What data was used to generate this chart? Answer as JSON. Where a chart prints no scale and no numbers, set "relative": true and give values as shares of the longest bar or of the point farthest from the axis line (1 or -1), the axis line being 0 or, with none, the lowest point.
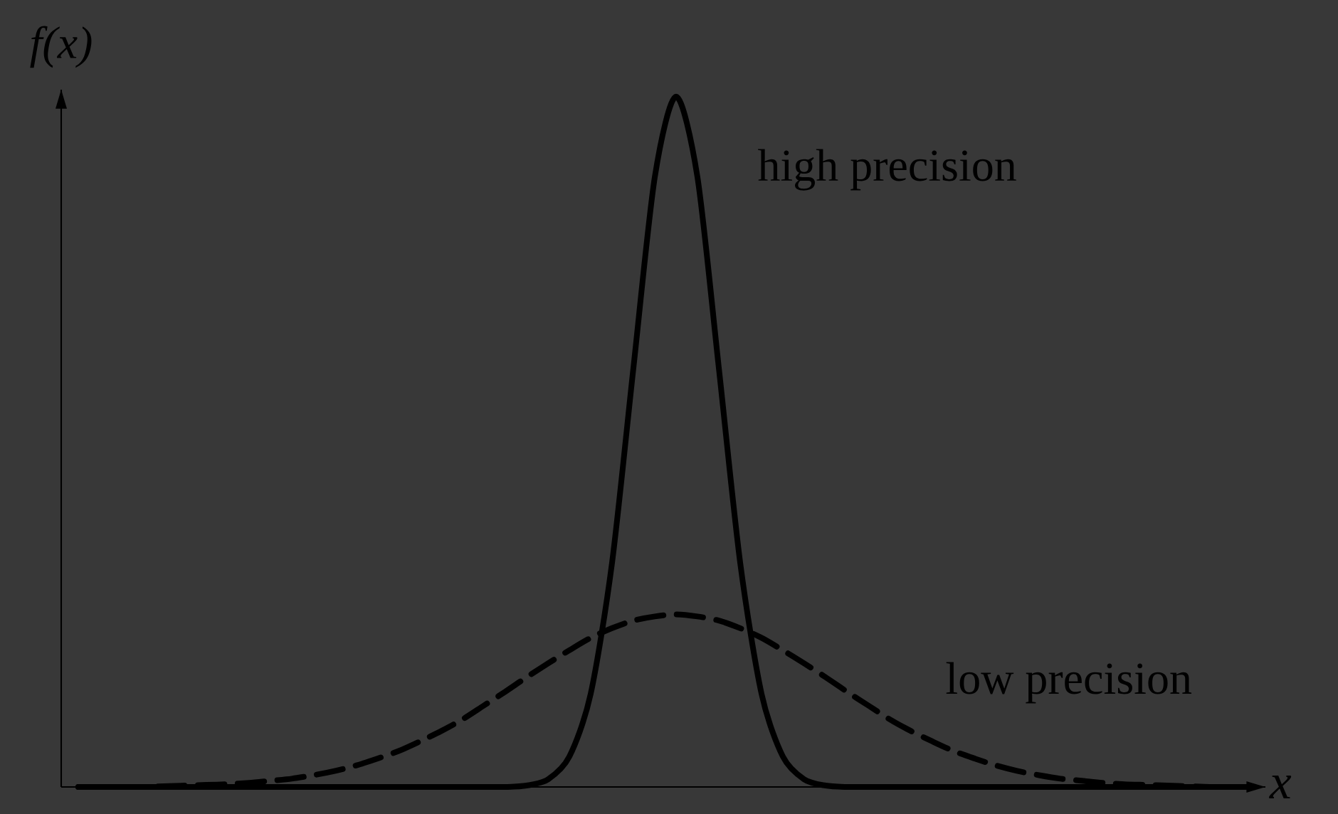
{
  "chart_data": {
    "type": "line",
    "relative": true,
    "xlabel": "x",
    "ylabel": "f(x)",
    "categories": [
      null,
      null,
      null,
      null,
      null,
      null,
      null,
      null,
      null,
      null,
      null,
      null,
      null,
      null,
      null,
      null,
      null,
      null,
      null,
      null,
      null,
      null,
      null,
      null,
      null,
      null,
      null,
      null,
      null,
      null,
      null,
      null,
      null,
      null,
      null,
      null,
      null,
      null,
      null,
      null,
      null,
      null,
      null,
      null,
      null,
      null,
      null,
      null,
      null,
      null,
      null,
      null,
      null,
      null,
      null,
      null
    ],
    "series": [
      {
        "name": "high precision",
        "color": "#000000",
        "line_style": "solid",
        "values": [
          0,
          0,
          0,
          0,
          0,
          0,
          0,
          0,
          0,
          0,
          0,
          0,
          0,
          0,
          0,
          0,
          0,
          0,
          0,
          0,
          0,
          0.002,
          0.011,
          0.044,
          0.135,
          0.325,
          0.607,
          0.883,
          1,
          0.883,
          0.607,
          0.325,
          0.135,
          0.044,
          0.011,
          0.002,
          0,
          0,
          0,
          0,
          0,
          0,
          0,
          0,
          0,
          0,
          0,
          0,
          0,
          0,
          0,
          0,
          0,
          0,
          0,
          0
        ]
      },
      {
        "name": "low precision",
        "color": "#000000",
        "line_style": "dashed",
        "values": [
          0,
          0,
          0,
          0,
          0.001,
          0.002,
          0.003,
          0.004,
          0.006,
          0.009,
          0.012,
          0.017,
          0.023,
          0.031,
          0.041,
          0.052,
          0.066,
          0.081,
          0.098,
          0.118,
          0.138,
          0.159,
          0.179,
          0.198,
          0.216,
          0.23,
          0.241,
          0.247,
          0.25,
          0.247,
          0.241,
          0.23,
          0.216,
          0.198,
          0.179,
          0.159,
          0.138,
          0.118,
          0.098,
          0.081,
          0.066,
          0.052,
          0.041,
          0.031,
          0.023,
          0.017,
          0.012,
          0.009,
          0.006,
          0.004,
          0.003,
          0.002,
          0.001,
          0,
          0,
          0
        ]
      }
    ]
  }
}
